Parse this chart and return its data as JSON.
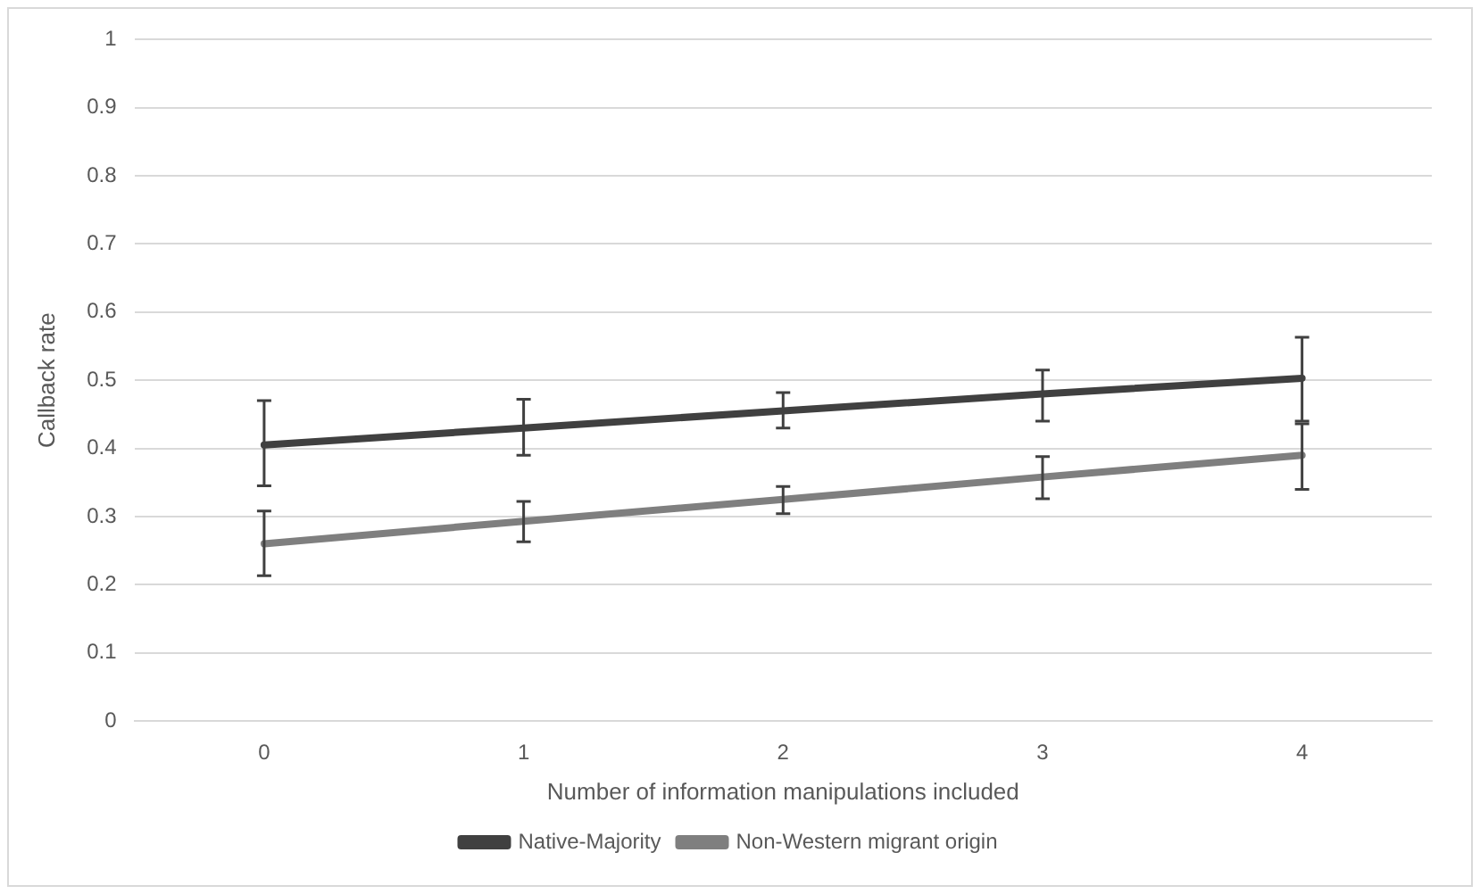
{
  "chart_data": {
    "type": "line",
    "xlabel": "Number of information manipulations included",
    "ylabel": "Callback rate",
    "categories": [
      "0",
      "1",
      "2",
      "3",
      "4"
    ],
    "series": [
      {
        "name": "Native-Majority",
        "color": "#404040",
        "values": [
          0.405,
          0.43,
          0.455,
          0.48,
          0.503
        ],
        "errors": [
          [
            0.345,
            0.47
          ],
          [
            0.39,
            0.472
          ],
          [
            0.43,
            0.482
          ],
          [
            0.44,
            0.515
          ],
          [
            0.44,
            0.563
          ]
        ]
      },
      {
        "name": "Non-Western migrant origin",
        "color": "#7f7f7f",
        "values": [
          0.26,
          0.293,
          0.325,
          0.358,
          0.39
        ],
        "errors": [
          [
            0.213,
            0.308
          ],
          [
            0.263,
            0.322
          ],
          [
            0.304,
            0.344
          ],
          [
            0.326,
            0.388
          ],
          [
            0.34,
            0.436
          ]
        ]
      }
    ],
    "ylim": [
      0,
      1
    ],
    "yticks": [
      0,
      0.1,
      0.2,
      0.3,
      0.4,
      0.5,
      0.6,
      0.7,
      0.8,
      0.9,
      1
    ],
    "grid": "y",
    "legend": "bottom",
    "marker": "none",
    "line_style": "solid"
  }
}
